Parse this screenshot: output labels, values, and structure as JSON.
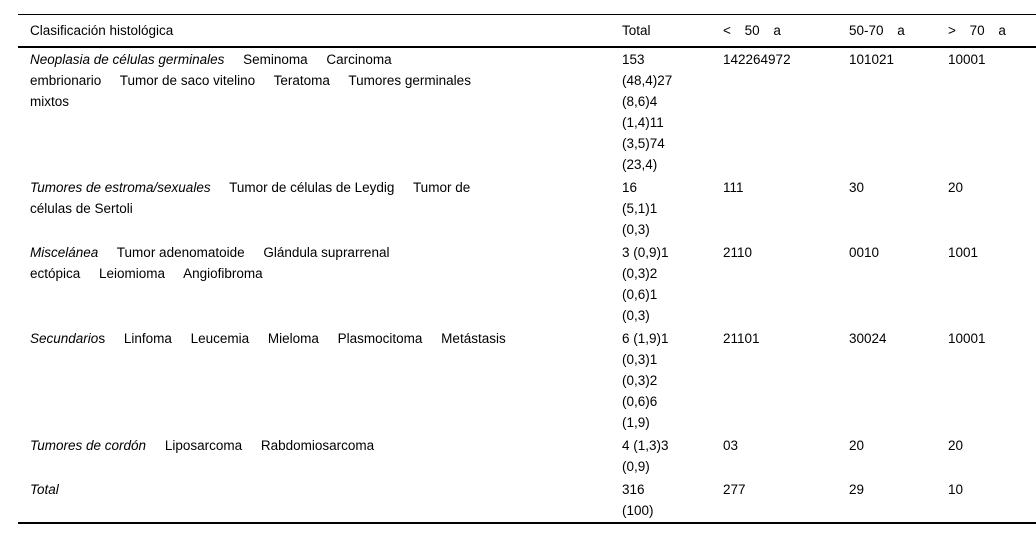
{
  "table": {
    "columns": [
      "Clasificación histológica",
      "Total",
      "< 50 a",
      "50-70 a",
      "> 70 a"
    ],
    "rows": [
      {
        "category": "Neoplasia de células germinales",
        "subtypes": "     Seminoma     Carcinoma\nembrionario     Tumor de saco vitelino     Teratoma     Tumores germinales\nmixtos",
        "total": "153\n(48,4)27\n(8,6)4\n(1,4)11\n(3,5)74\n(23,4)",
        "under50": "142264972",
        "from50to70": "101021",
        "over70": "10001"
      },
      {
        "category": "Tumores de estroma/sexuales",
        "subtypes": "     Tumor de células de Leydig     Tumor de\ncélulas de Sertoli",
        "total": "16\n(5,1)1\n(0,3)",
        "under50": "111",
        "from50to70": "30",
        "over70": "20"
      },
      {
        "category": "Miscelánea",
        "subtypes": "     Tumor adenomatoide     Glándula suprarrenal\nectópica     Leiomioma     Angiofibroma",
        "total": "3 (0,9)1\n(0,3)2\n(0,6)1\n(0,3)",
        "under50": "2110",
        "from50to70": "0010",
        "over70": "1001"
      },
      {
        "category": "Secundario",
        "subtypes": "s     Linfoma     Leucemia     Mieloma     Plasmocitoma     Metástasis",
        "total": "6 (1,9)1\n(0,3)1\n(0,3)2\n(0,6)6\n(1,9)",
        "under50": "21101",
        "from50to70": "30024",
        "over70": "10001"
      },
      {
        "category": "Tumores de cordón",
        "subtypes": "     Liposarcoma     Rabdomiosarcoma",
        "total": "4 (1,3)3\n(0,9)",
        "under50": "03",
        "from50to70": "20",
        "over70": "20"
      },
      {
        "category": "Total",
        "subtypes": "",
        "total": "316\n(100)",
        "under50": "277",
        "from50to70": "29",
        "over70": "10"
      }
    ]
  }
}
